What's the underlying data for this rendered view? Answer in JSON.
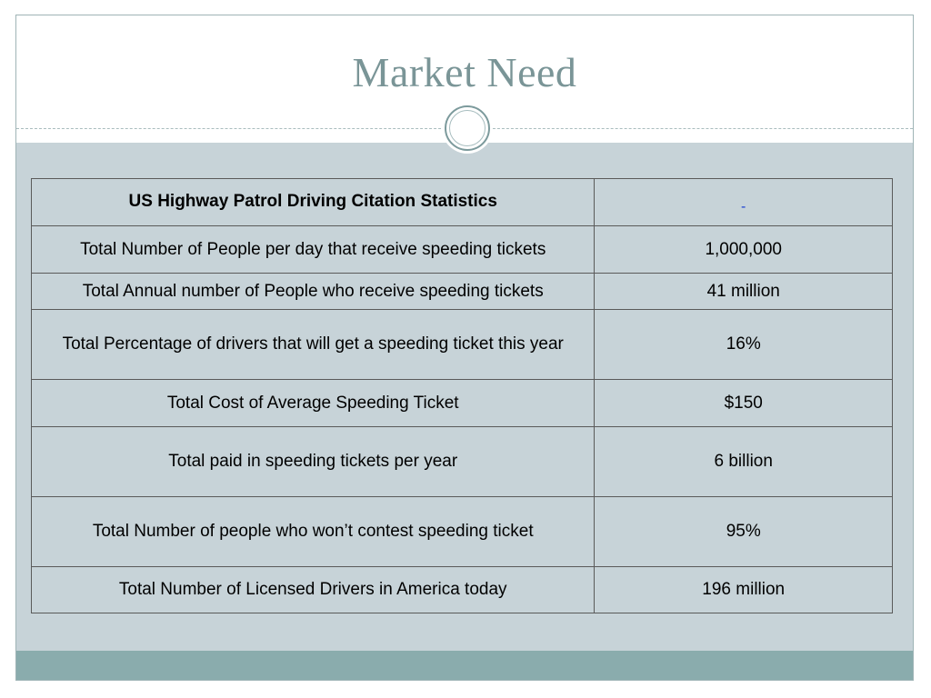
{
  "slide": {
    "title": "Market Need"
  },
  "table": {
    "header": {
      "label": "US Highway Patrol Driving Citation Statistics",
      "value": "-"
    },
    "rows": [
      {
        "label": "Total Number of People per day that receive speeding tickets",
        "value": "1,000,000"
      },
      {
        "label": "Total Annual number of People who receive speeding tickets",
        "value": "41 million"
      },
      {
        "label": "Total Percentage of drivers that will get a speeding ticket this year",
        "value": "16%"
      },
      {
        "label": "Total Cost of Average Speeding Ticket",
        "value": "$150"
      },
      {
        "label": "Total paid in speeding tickets per year",
        "value": "6 billion"
      },
      {
        "label": "Total Number of people who won’t contest speeding ticket",
        "value": "95%"
      },
      {
        "label": "Total Number of Licensed Drivers in America today",
        "value": "196 million"
      }
    ]
  },
  "colors": {
    "title": "#7a9597",
    "content_background": "#c7d3d8",
    "bottom_bar": "#8aacad",
    "header_dash": "#1a3fcf"
  }
}
